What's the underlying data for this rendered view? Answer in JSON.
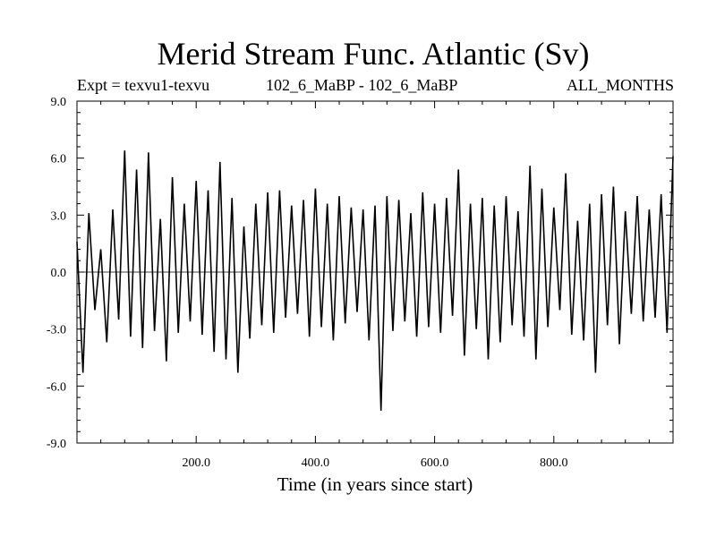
{
  "chart_data": {
    "type": "line",
    "title": "Merid Stream Func. Atlantic (Sv)",
    "subtitle_left": "Expt = texvu1-texvu",
    "subtitle_center": "102_6_MaBP - 102_6_MaBP",
    "subtitle_right": "ALL_MONTHS",
    "xlabel": "Time (in years since start)",
    "ylabel": "",
    "xlim": [
      0,
      1000
    ],
    "ylim": [
      -9.0,
      9.0
    ],
    "x_ticks": [
      200,
      400,
      600,
      800
    ],
    "x_tick_labels": [
      "200.0",
      "400.0",
      "600.0",
      "800.0"
    ],
    "y_ticks": [
      -9,
      -6,
      -3,
      0,
      3,
      6,
      9
    ],
    "y_tick_labels": [
      "-9.0",
      "-6.0",
      "-3.0",
      "0.0",
      "3.0",
      "6.0",
      "9.0"
    ],
    "zero_line": true,
    "grid": false,
    "series": [
      {
        "x": [
          0,
          10,
          20,
          30,
          40,
          50,
          60,
          70,
          80,
          90,
          100,
          110,
          120,
          130,
          140,
          150,
          160,
          170,
          180,
          190,
          200,
          210,
          220,
          230,
          240,
          250,
          260,
          270,
          280,
          290,
          300,
          310,
          320,
          330,
          340,
          350,
          360,
          370,
          380,
          390,
          400,
          410,
          420,
          430,
          440,
          450,
          460,
          470,
          480,
          490,
          500,
          510,
          520,
          530,
          540,
          550,
          560,
          570,
          580,
          590,
          600,
          610,
          620,
          630,
          640,
          650,
          660,
          670,
          680,
          690,
          700,
          710,
          720,
          730,
          740,
          750,
          760,
          770,
          780,
          790,
          800,
          810,
          820,
          830,
          840,
          850,
          860,
          870,
          880,
          890,
          900,
          910,
          920,
          930,
          940,
          950,
          960,
          970,
          980,
          990,
          1000
        ],
        "values": [
          1.6,
          -5.3,
          3.1,
          -2.0,
          1.2,
          -3.7,
          3.3,
          -2.5,
          6.4,
          -3.4,
          5.4,
          -4.0,
          6.3,
          -3.1,
          2.8,
          -4.7,
          5.0,
          -3.2,
          3.6,
          -2.6,
          4.8,
          -3.3,
          4.3,
          -4.2,
          5.8,
          -4.6,
          3.9,
          -5.3,
          2.4,
          -3.5,
          3.6,
          -2.8,
          4.2,
          -3.2,
          4.3,
          -2.4,
          3.5,
          -2.2,
          3.8,
          -3.4,
          4.4,
          -2.9,
          3.6,
          -3.6,
          4.0,
          -2.7,
          3.4,
          -2.1,
          3.3,
          -3.6,
          3.5,
          -7.3,
          4.0,
          -3.1,
          3.8,
          -2.6,
          3.1,
          -3.4,
          4.2,
          -2.9,
          3.6,
          -3.2,
          3.9,
          -2.3,
          5.4,
          -4.4,
          3.6,
          -3.0,
          3.9,
          -4.6,
          3.5,
          -3.7,
          4.0,
          -2.8,
          3.2,
          -3.4,
          5.6,
          -4.6,
          4.4,
          -2.9,
          3.4,
          -2.0,
          5.2,
          -3.3,
          2.7,
          -3.6,
          3.6,
          -5.3,
          4.1,
          -2.8,
          4.5,
          -3.8,
          3.2,
          -2.2,
          4.0,
          -2.6,
          3.3,
          -2.4,
          4.1,
          -3.2,
          6.1
        ]
      }
    ]
  }
}
